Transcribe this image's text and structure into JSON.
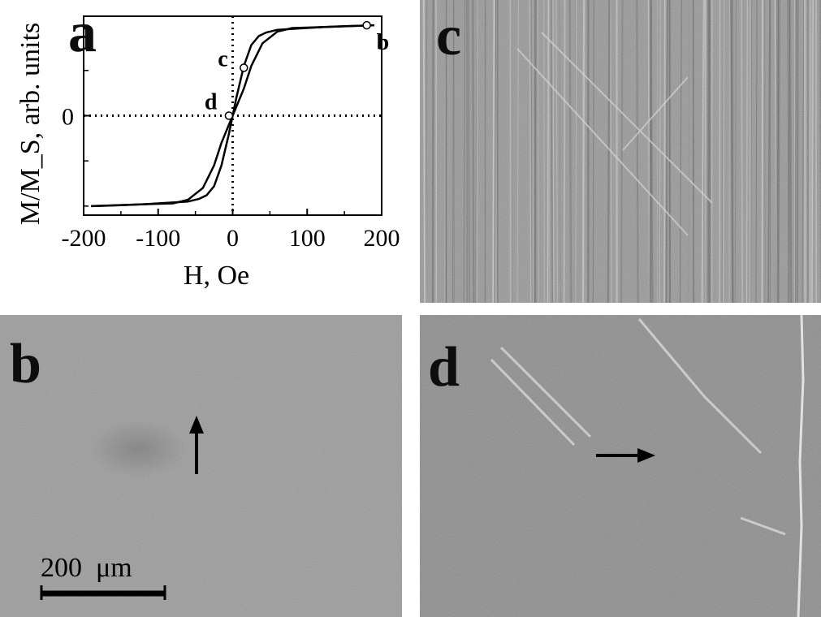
{
  "figure": {
    "panels": {
      "a": {
        "letter": "a"
      },
      "b": {
        "letter": "b"
      },
      "c": {
        "letter": "c"
      },
      "d": {
        "letter": "d"
      }
    },
    "scale_bar": {
      "label": "200  μm"
    }
  },
  "chart_data": {
    "type": "line",
    "title": "",
    "xlabel": "H, Oe",
    "ylabel": "M/M_S, arb. units",
    "xlim": [
      -200,
      200
    ],
    "ylim": [
      -1.1,
      1.1
    ],
    "x_ticks": [
      -200,
      -100,
      0,
      100,
      200
    ],
    "y_ticks": [
      {
        "value": 0,
        "label": "0"
      }
    ],
    "grid": false,
    "reference_lines": {
      "x": 0,
      "y": 0,
      "style": "dotted"
    },
    "series": [
      {
        "branch": "descending",
        "x": [
          190,
          120,
          60,
          45,
          35,
          25,
          15,
          5,
          0,
          -5,
          -15,
          -25,
          -40,
          -60,
          -80,
          -120,
          -150,
          -190
        ],
        "y": [
          1.0,
          0.98,
          0.95,
          0.92,
          0.88,
          0.78,
          0.55,
          0.2,
          0.0,
          -0.1,
          -0.3,
          -0.55,
          -0.8,
          -0.93,
          -0.97,
          -0.98,
          -0.99,
          -1.0
        ]
      },
      {
        "branch": "ascending",
        "x": [
          -190,
          -120,
          -60,
          -45,
          -35,
          -25,
          -15,
          -5,
          0,
          5,
          15,
          25,
          40,
          60,
          80,
          120,
          150,
          190
        ],
        "y": [
          -1.0,
          -0.98,
          -0.95,
          -0.92,
          -0.88,
          -0.78,
          -0.55,
          -0.2,
          0.0,
          0.1,
          0.3,
          0.55,
          0.8,
          0.93,
          0.97,
          0.98,
          0.99,
          1.0
        ]
      }
    ],
    "marked_points": [
      {
        "label": "b",
        "x": 180,
        "y": 1.0
      },
      {
        "label": "c",
        "x": 15,
        "y": 0.53
      },
      {
        "label": "d",
        "x": -5,
        "y": 0.0
      }
    ]
  },
  "annotations": {
    "b_arrow_direction": "up",
    "d_arrow_direction": "right"
  }
}
